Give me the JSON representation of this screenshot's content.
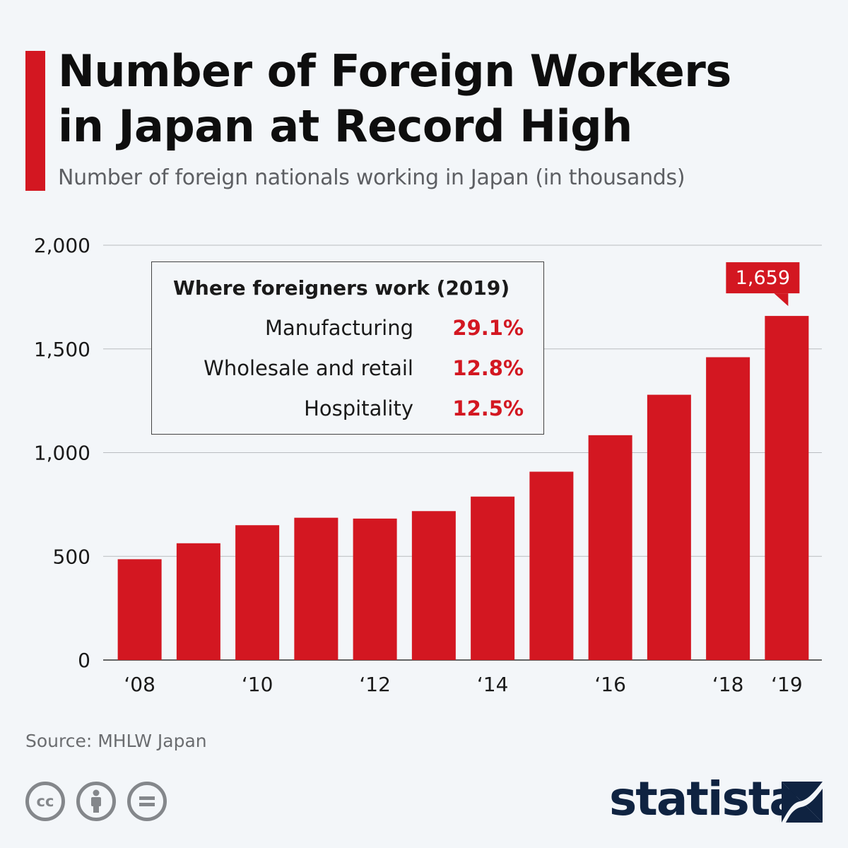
{
  "header": {
    "title": "Number of Foreign Workers\nin Japan at Record High",
    "subtitle": "Number of foreign nationals working in Japan (in thousands)"
  },
  "colors": {
    "accent": "#d31721",
    "background": "#f3f6f9",
    "grid": "#b9bcc0",
    "logo": "#0f2341"
  },
  "chart_data": {
    "type": "bar",
    "categories": [
      "2008",
      "2009",
      "2010",
      "2011",
      "2012",
      "2013",
      "2014",
      "2015",
      "2016",
      "2017",
      "2018",
      "2019"
    ],
    "x_tick_labels": [
      "‘08",
      "",
      "‘10",
      "",
      "‘12",
      "",
      "‘14",
      "",
      "‘16",
      "",
      "‘18",
      "‘19"
    ],
    "values": [
      486,
      563,
      650,
      686,
      682,
      718,
      788,
      908,
      1084,
      1279,
      1460,
      1659
    ],
    "ylim": [
      0,
      2000
    ],
    "yticks": [
      0,
      500,
      1000,
      1500,
      2000
    ],
    "ytick_labels": [
      "0",
      "500",
      "1,000",
      "1,500",
      "2,000"
    ],
    "grid": true,
    "highlight": {
      "category": "2019",
      "label": "1,659"
    },
    "xlabel": "",
    "ylabel": ""
  },
  "inset": {
    "title": "Where foreigners work (2019)",
    "rows": [
      {
        "label": "Manufacturing",
        "value": "29.1%"
      },
      {
        "label": "Wholesale and retail",
        "value": "12.8%"
      },
      {
        "label": "Hospitality",
        "value": "12.5%"
      }
    ]
  },
  "footer": {
    "source": "Source: MHLW Japan",
    "license_icons": [
      "creative-commons-icon",
      "attribution-icon",
      "no-derivatives-icon"
    ],
    "logo_text": "statista"
  }
}
